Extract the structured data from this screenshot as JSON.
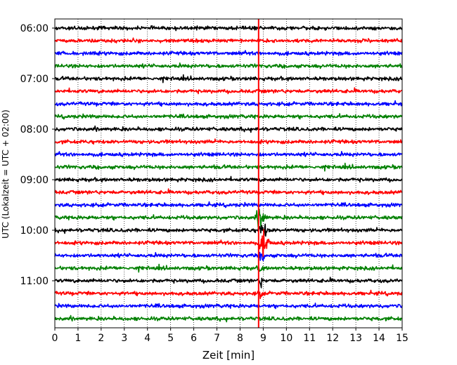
{
  "chart_data": {
    "type": "line",
    "title": "",
    "xlabel": "Zeit  [min]",
    "ylabel": "UTC (Lokalzeit = UTC + 02:00)",
    "xlim": [
      0,
      15
    ],
    "x_ticks": [
      "0",
      "1",
      "2",
      "3",
      "4",
      "5",
      "6",
      "7",
      "8",
      "9",
      "10",
      "11",
      "12",
      "13",
      "14",
      "15"
    ],
    "y_ticks": [
      "06:00",
      "07:00",
      "08:00",
      "09:00",
      "10:00",
      "11:00"
    ],
    "y_tick_trace_index": [
      0,
      4,
      8,
      12,
      16,
      20
    ],
    "grid": {
      "vertical_dotted": true,
      "horizontal": false
    },
    "trace_interval_minutes": 15,
    "trace_colors": [
      "#000000",
      "#ff0000",
      "#0000ff",
      "#008000"
    ],
    "trace_count": 24,
    "trace_start_times": [
      "06:00",
      "06:15",
      "06:30",
      "06:45",
      "07:00",
      "07:15",
      "07:30",
      "07:45",
      "08:00",
      "08:15",
      "08:30",
      "08:45",
      "09:00",
      "09:15",
      "09:30",
      "09:45",
      "10:00",
      "10:15",
      "10:30",
      "10:45",
      "11:00",
      "11:15",
      "11:30",
      "11:45"
    ],
    "event_marker": {
      "x": 8.8,
      "color": "#ff0000"
    },
    "event_traces": [
      {
        "trace": 15,
        "x_start": 8.6,
        "x_end": 9.2,
        "amplitude": 2.2
      },
      {
        "trace": 16,
        "x_start": 8.7,
        "x_end": 9.3,
        "amplitude": 1.6
      },
      {
        "trace": 17,
        "x_start": 8.75,
        "x_end": 9.35,
        "amplitude": 2.8
      },
      {
        "trace": 18,
        "x_start": 8.8,
        "x_end": 9.1,
        "amplitude": 1.8
      },
      {
        "trace": 19,
        "x_start": 8.8,
        "x_end": 9.0,
        "amplitude": 1.4
      },
      {
        "trace": 20,
        "x_start": 8.8,
        "x_end": 9.0,
        "amplitude": 1.4
      },
      {
        "trace": 21,
        "x_start": 8.8,
        "x_end": 9.0,
        "amplitude": 1.2
      }
    ]
  }
}
